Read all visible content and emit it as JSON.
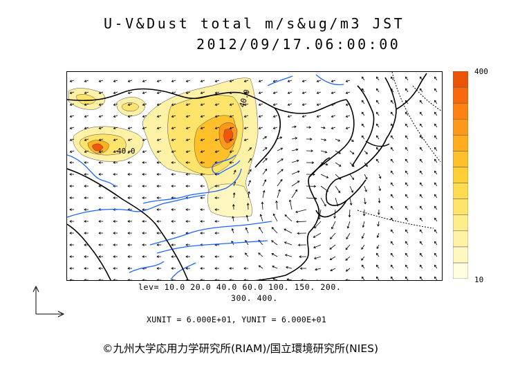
{
  "title": {
    "line1": "U-V&Dust total m/s&ug/m3 JST",
    "line2": "2012/09/17.06:00:00"
  },
  "legend": {
    "max_label": "400",
    "min_label": "10",
    "colors": [
      "#fffde0",
      "#fff7c0",
      "#fff2a6",
      "#ffec8a",
      "#ffe46c",
      "#ffdb4f",
      "#ffcf38",
      "#ffc02a",
      "#ffad1f",
      "#ff9818",
      "#ff8112",
      "#f7690c",
      "#ea5406"
    ]
  },
  "levels": {
    "line1": "lev= 10.0 20.0 40.0 60.0 100. 150. 200.",
    "line2": "300. 400."
  },
  "units_text": "XUNIT = 6.000E+01, YUNIT = 6.000E+01",
  "map": {
    "contour_labels": [
      "40.0",
      "40.0"
    ],
    "colors": {
      "coast": "#000000",
      "river": "#1e64ff",
      "border": "#000000"
    },
    "wind_field": "arrows"
  },
  "copyright": "©九州大学応用力学研究所(RIAM)/国立環境研究所(NIES)"
}
